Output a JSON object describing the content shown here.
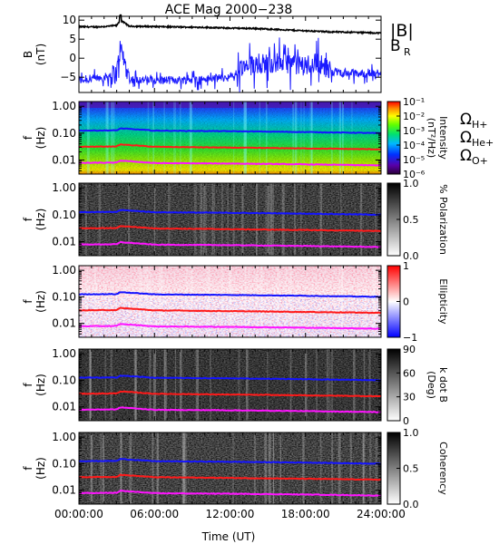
{
  "title": "ACE Mag 2000−238",
  "colors": {
    "bmag": "#000000",
    "br": "#1a1aff",
    "h_plus": "#1414ff",
    "he_plus": "#ff1a1a",
    "o_plus": "#ff14ff"
  },
  "x_axis": {
    "label": "Time (UT)",
    "range_hours": [
      0,
      24
    ],
    "tick_labels": [
      "00:00:00",
      "06:00:00",
      "12:00:00",
      "18:00:00",
      "24:00:00"
    ],
    "tick_hours": [
      0,
      6,
      12,
      18,
      24
    ]
  },
  "chart_data": [
    {
      "type": "line",
      "panel": "magnetic-field",
      "ylabel": "B",
      "yunit": "(nT)",
      "ylim": [
        -9,
        11
      ],
      "yticks": [
        "10",
        "5",
        "0",
        "−5"
      ],
      "ytick_values": [
        10,
        5,
        0,
        -5
      ],
      "legend": [
        "|B|",
        "B",
        "R"
      ],
      "series": [
        {
          "name": "|B|",
          "x_hours": [
            0,
            1,
            2,
            3,
            3.3,
            4,
            6,
            8,
            10,
            12,
            14,
            16,
            18,
            20,
            22,
            24
          ],
          "values": [
            8.3,
            8.2,
            8.3,
            8.6,
            10.0,
            8.4,
            8.3,
            8.2,
            8.1,
            7.9,
            7.8,
            7.5,
            7.2,
            6.9,
            6.8,
            6.6
          ]
        },
        {
          "name": "B_R",
          "x_hours": [
            0,
            1,
            2,
            3,
            3.3,
            4,
            6,
            8,
            10,
            12,
            13,
            14,
            16,
            18,
            19,
            20,
            22,
            24
          ],
          "values": [
            -5.8,
            -5.5,
            -5.0,
            -4.0,
            3.0,
            -5.5,
            -5.8,
            -5.7,
            -5.5,
            -5.0,
            -3.0,
            -1.5,
            -1.0,
            -2.0,
            -1.0,
            -3.5,
            -4.0,
            -4.2
          ]
        }
      ]
    },
    {
      "type": "heatmap",
      "panel": "intensity",
      "ylabel": "f",
      "yunit": "(Hz)",
      "yscale": "log",
      "ylim": [
        0.003,
        1.5
      ],
      "yticks": [
        "1.00",
        "0.10",
        "0.01"
      ],
      "ytick_values": [
        1,
        0.1,
        0.01
      ],
      "colorbar": {
        "label": "Intensity",
        "unit": "(nT²/Hz)",
        "ticks": [
          "10⁻¹",
          "10⁻²",
          "10⁻³",
          "10⁻⁴",
          "10⁻⁵",
          "10⁻⁶"
        ],
        "scale": "rainbow"
      }
    },
    {
      "type": "heatmap",
      "panel": "polarization",
      "ylabel": "f",
      "yunit": "(Hz)",
      "yscale": "log",
      "ylim": [
        0.003,
        1.5
      ],
      "yticks": [
        "1.00",
        "0.10",
        "0.01"
      ],
      "ytick_values": [
        1,
        0.1,
        0.01
      ],
      "colorbar": {
        "label": "% Polarization",
        "ticks": [
          "1.0",
          "0.5",
          "0.0"
        ],
        "scale": "grayscale"
      }
    },
    {
      "type": "heatmap",
      "panel": "ellipticity",
      "ylabel": "f",
      "yunit": "(Hz)",
      "yscale": "log",
      "ylim": [
        0.003,
        1.5
      ],
      "yticks": [
        "1.00",
        "0.10",
        "0.01"
      ],
      "ytick_values": [
        1,
        0.1,
        0.01
      ],
      "colorbar": {
        "label": "Ellipticity",
        "ticks": [
          "1",
          "0",
          "−1"
        ],
        "scale": "blue-white-red"
      }
    },
    {
      "type": "heatmap",
      "panel": "k-dot-b",
      "ylabel": "f",
      "yunit": "(Hz)",
      "yscale": "log",
      "ylim": [
        0.003,
        1.5
      ],
      "yticks": [
        "1.00",
        "0.10",
        "0.01"
      ],
      "ytick_values": [
        1,
        0.1,
        0.01
      ],
      "colorbar": {
        "label": "k dot B",
        "unit": "(Deg)",
        "ticks": [
          "90",
          "60",
          "30",
          "0"
        ],
        "scale": "grayscale"
      }
    },
    {
      "type": "heatmap",
      "panel": "coherency",
      "ylabel": "f",
      "yunit": "(Hz)",
      "yscale": "log",
      "ylim": [
        0.003,
        1.5
      ],
      "yticks": [
        "1.00",
        "0.10",
        "0.01"
      ],
      "ytick_values": [
        1,
        0.1,
        0.01
      ],
      "colorbar": {
        "label": "Coherency",
        "ticks": [
          "1.0",
          "0.5",
          "0.0"
        ],
        "scale": "grayscale"
      }
    }
  ],
  "gyrofrequency_lines": {
    "legend": [
      {
        "symbol": "Ω",
        "sub": "H+"
      },
      {
        "symbol": "Ω",
        "sub": "He+"
      },
      {
        "symbol": "Ω",
        "sub": "O+"
      }
    ],
    "x_hours": [
      0,
      3,
      3.3,
      6,
      12,
      18,
      24
    ],
    "h_plus_hz": [
      0.125,
      0.127,
      0.15,
      0.124,
      0.118,
      0.11,
      0.1
    ],
    "he_plus_hz": [
      0.031,
      0.032,
      0.038,
      0.031,
      0.029,
      0.027,
      0.025
    ],
    "o_plus_hz": [
      0.0078,
      0.008,
      0.0095,
      0.0077,
      0.0074,
      0.0069,
      0.0063
    ]
  }
}
